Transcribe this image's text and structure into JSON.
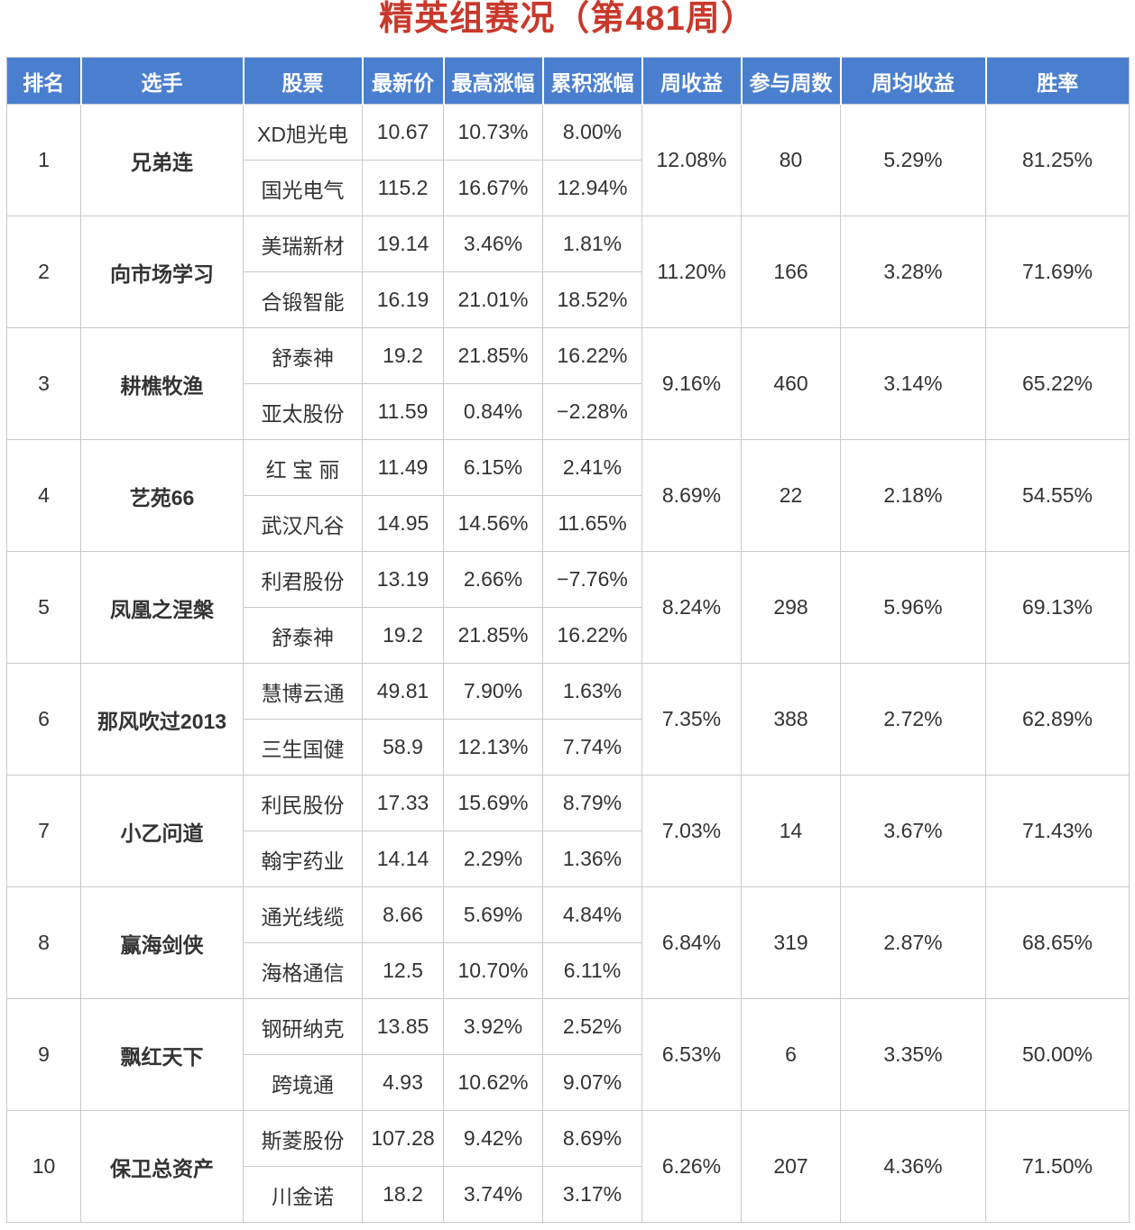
{
  "title": "精英组赛况（第481周）",
  "headers": [
    "排名",
    "选手",
    "股票",
    "最新价",
    "最高涨幅",
    "累积涨幅",
    "周收益",
    "参与周数",
    "周均收益",
    "胜率"
  ],
  "rows": [
    {
      "rank": "1",
      "player": "兄弟连",
      "weekly_return": "12.08%",
      "weeks": "80",
      "avg_return": "5.29%",
      "win_rate": "81.25%",
      "stocks": [
        {
          "name": "XD旭光电",
          "price": "10.67",
          "max_gain": "10.73%",
          "cum_gain": "8.00%"
        },
        {
          "name": "国光电气",
          "price": "115.2",
          "max_gain": "16.67%",
          "cum_gain": "12.94%"
        }
      ]
    },
    {
      "rank": "2",
      "player": "向市场学习",
      "weekly_return": "11.20%",
      "weeks": "166",
      "avg_return": "3.28%",
      "win_rate": "71.69%",
      "stocks": [
        {
          "name": "美瑞新材",
          "price": "19.14",
          "max_gain": "3.46%",
          "cum_gain": "1.81%"
        },
        {
          "name": "合锻智能",
          "price": "16.19",
          "max_gain": "21.01%",
          "cum_gain": "18.52%"
        }
      ]
    },
    {
      "rank": "3",
      "player": "耕樵牧渔",
      "weekly_return": "9.16%",
      "weeks": "460",
      "avg_return": "3.14%",
      "win_rate": "65.22%",
      "stocks": [
        {
          "name": "舒泰神",
          "price": "19.2",
          "max_gain": "21.85%",
          "cum_gain": "16.22%"
        },
        {
          "name": "亚太股份",
          "price": "11.59",
          "max_gain": "0.84%",
          "cum_gain": "−2.28%"
        }
      ]
    },
    {
      "rank": "4",
      "player": "艺苑66",
      "weekly_return": "8.69%",
      "weeks": "22",
      "avg_return": "2.18%",
      "win_rate": "54.55%",
      "stocks": [
        {
          "name": "红 宝 丽",
          "price": "11.49",
          "max_gain": "6.15%",
          "cum_gain": "2.41%"
        },
        {
          "name": "武汉凡谷",
          "price": "14.95",
          "max_gain": "14.56%",
          "cum_gain": "11.65%"
        }
      ]
    },
    {
      "rank": "5",
      "player": "凤凰之涅槃",
      "weekly_return": "8.24%",
      "weeks": "298",
      "avg_return": "5.96%",
      "win_rate": "69.13%",
      "stocks": [
        {
          "name": "利君股份",
          "price": "13.19",
          "max_gain": "2.66%",
          "cum_gain": "−7.76%"
        },
        {
          "name": "舒泰神",
          "price": "19.2",
          "max_gain": "21.85%",
          "cum_gain": "16.22%"
        }
      ]
    },
    {
      "rank": "6",
      "player": "那风吹过2013",
      "weekly_return": "7.35%",
      "weeks": "388",
      "avg_return": "2.72%",
      "win_rate": "62.89%",
      "stocks": [
        {
          "name": "慧博云通",
          "price": "49.81",
          "max_gain": "7.90%",
          "cum_gain": "1.63%"
        },
        {
          "name": "三生国健",
          "price": "58.9",
          "max_gain": "12.13%",
          "cum_gain": "7.74%"
        }
      ]
    },
    {
      "rank": "7",
      "player": "小乙问道",
      "weekly_return": "7.03%",
      "weeks": "14",
      "avg_return": "3.67%",
      "win_rate": "71.43%",
      "stocks": [
        {
          "name": "利民股份",
          "price": "17.33",
          "max_gain": "15.69%",
          "cum_gain": "8.79%"
        },
        {
          "name": "翰宇药业",
          "price": "14.14",
          "max_gain": "2.29%",
          "cum_gain": "1.36%"
        }
      ]
    },
    {
      "rank": "8",
      "player": "赢海剑侠",
      "weekly_return": "6.84%",
      "weeks": "319",
      "avg_return": "2.87%",
      "win_rate": "68.65%",
      "stocks": [
        {
          "name": "通光线缆",
          "price": "8.66",
          "max_gain": "5.69%",
          "cum_gain": "4.84%"
        },
        {
          "name": "海格通信",
          "price": "12.5",
          "max_gain": "10.70%",
          "cum_gain": "6.11%"
        }
      ]
    },
    {
      "rank": "9",
      "player": "飘红天下",
      "weekly_return": "6.53%",
      "weeks": "6",
      "avg_return": "3.35%",
      "win_rate": "50.00%",
      "stocks": [
        {
          "name": "钢研纳克",
          "price": "13.85",
          "max_gain": "3.92%",
          "cum_gain": "2.52%"
        },
        {
          "name": "跨境通",
          "price": "4.93",
          "max_gain": "10.62%",
          "cum_gain": "9.07%"
        }
      ]
    },
    {
      "rank": "10",
      "player": "保卫总资产",
      "weekly_return": "6.26%",
      "weeks": "207",
      "avg_return": "4.36%",
      "win_rate": "71.50%",
      "stocks": [
        {
          "name": "斯菱股份",
          "price": "107.28",
          "max_gain": "9.42%",
          "cum_gain": "8.69%"
        },
        {
          "name": "川金诺",
          "price": "18.2",
          "max_gain": "3.74%",
          "cum_gain": "3.17%"
        }
      ]
    }
  ],
  "colors": {
    "header_bg": "#4a7fd0",
    "title": "#c8392b",
    "positive": "#d7343b",
    "negative": "#2f8a2f",
    "link": "#2e6db8"
  }
}
